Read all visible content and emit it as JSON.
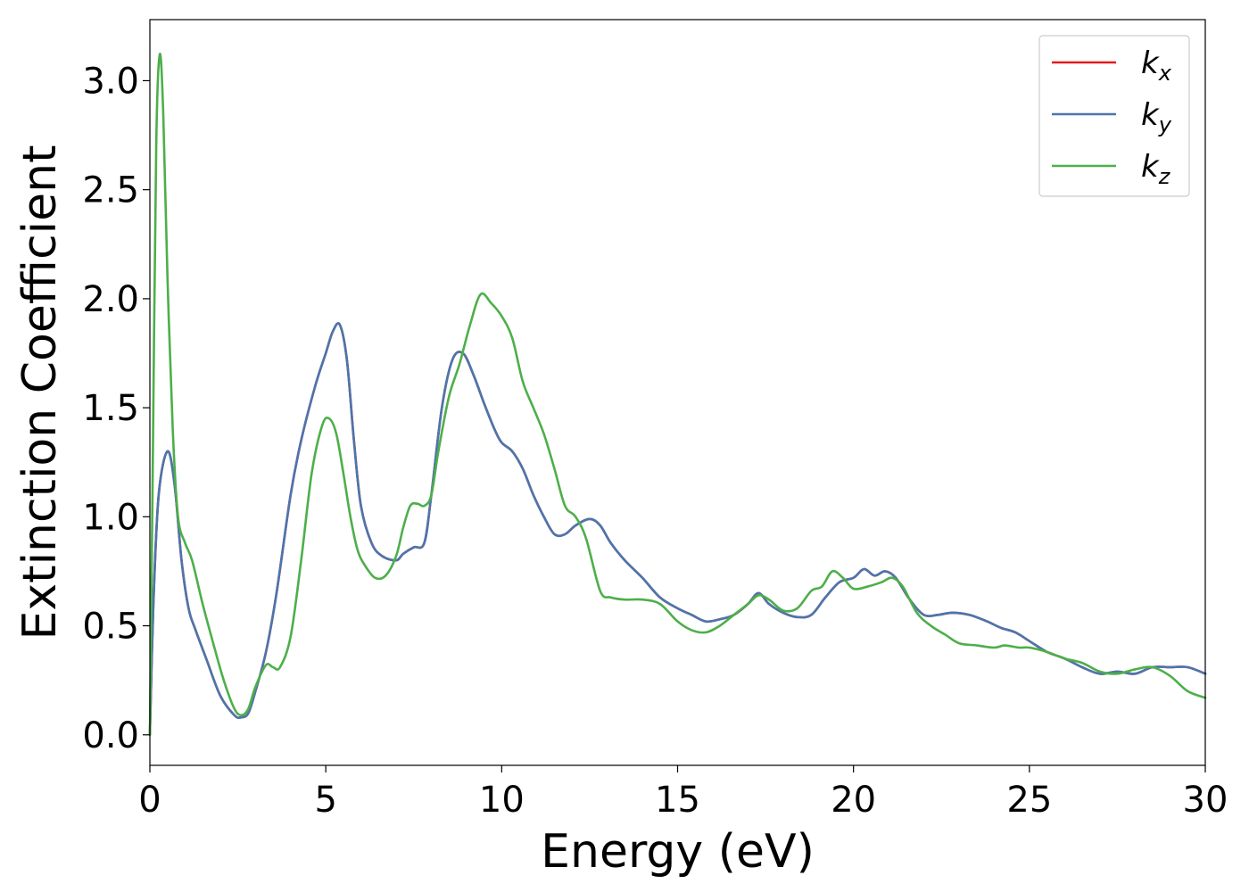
{
  "chart_data": {
    "type": "line",
    "title": "",
    "xlabel": "Energy (eV)",
    "ylabel": "Extinction Coefficient",
    "xlim": [
      0,
      30
    ],
    "ylim": [
      -0.14,
      3.28
    ],
    "xticks": [
      0,
      5,
      10,
      15,
      20,
      25,
      30
    ],
    "xtick_labels": [
      "0",
      "5",
      "10",
      "15",
      "20",
      "25",
      "30"
    ],
    "yticks": [
      0.0,
      0.5,
      1.0,
      1.5,
      2.0,
      2.5,
      3.0
    ],
    "ytick_labels": [
      "0.0",
      "0.5",
      "1.0",
      "1.5",
      "2.0",
      "2.5",
      "3.0"
    ],
    "grid": false,
    "legend_position": "top-right",
    "series": [
      {
        "name": "k",
        "sub": "x",
        "color": "#e41a1c",
        "x": [
          0,
          0.1,
          0.25,
          0.5,
          0.7,
          0.9,
          1.1,
          1.3,
          1.6,
          2.0,
          2.4,
          2.6,
          2.8,
          3.0,
          3.3,
          3.6,
          4.0,
          4.3,
          4.7,
          5.0,
          5.2,
          5.4,
          5.6,
          5.8,
          6.0,
          6.3,
          6.6,
          7.0,
          7.2,
          7.5,
          7.8,
          8.0,
          8.3,
          8.6,
          8.9,
          9.2,
          9.5,
          9.8,
          10.0,
          10.3,
          10.6,
          10.9,
          11.2,
          11.5,
          11.8,
          12.1,
          12.5,
          12.8,
          13.1,
          13.5,
          14.0,
          14.5,
          15.0,
          15.4,
          15.8,
          16.2,
          16.6,
          17.0,
          17.3,
          17.6,
          18.0,
          18.4,
          18.8,
          19.2,
          19.6,
          20.0,
          20.3,
          20.6,
          20.9,
          21.2,
          21.6,
          22.0,
          22.4,
          22.8,
          23.3,
          23.8,
          24.2,
          24.6,
          25.0,
          25.5,
          26.0,
          26.5,
          27.0,
          27.5,
          28.0,
          28.5,
          29.0,
          29.5,
          30.0
        ],
        "values": [
          0.0,
          0.6,
          1.1,
          1.3,
          1.15,
          0.8,
          0.58,
          0.48,
          0.35,
          0.18,
          0.09,
          0.08,
          0.1,
          0.2,
          0.38,
          0.65,
          1.1,
          1.35,
          1.6,
          1.75,
          1.85,
          1.88,
          1.72,
          1.35,
          1.05,
          0.88,
          0.82,
          0.8,
          0.83,
          0.86,
          0.88,
          1.1,
          1.5,
          1.72,
          1.75,
          1.65,
          1.52,
          1.4,
          1.34,
          1.3,
          1.22,
          1.1,
          1.0,
          0.92,
          0.92,
          0.96,
          0.99,
          0.96,
          0.88,
          0.8,
          0.72,
          0.63,
          0.58,
          0.55,
          0.52,
          0.53,
          0.55,
          0.6,
          0.65,
          0.6,
          0.56,
          0.54,
          0.55,
          0.63,
          0.7,
          0.72,
          0.76,
          0.73,
          0.75,
          0.72,
          0.62,
          0.55,
          0.55,
          0.56,
          0.55,
          0.52,
          0.49,
          0.47,
          0.43,
          0.38,
          0.35,
          0.31,
          0.28,
          0.29,
          0.28,
          0.31,
          0.31,
          0.31,
          0.28
        ]
      },
      {
        "name": "k",
        "sub": "y",
        "color": "#4a76ad",
        "x": [
          0,
          0.1,
          0.25,
          0.5,
          0.7,
          0.9,
          1.1,
          1.3,
          1.6,
          2.0,
          2.4,
          2.6,
          2.8,
          3.0,
          3.3,
          3.6,
          4.0,
          4.3,
          4.7,
          5.0,
          5.2,
          5.4,
          5.6,
          5.8,
          6.0,
          6.3,
          6.6,
          7.0,
          7.2,
          7.5,
          7.8,
          8.0,
          8.3,
          8.6,
          8.9,
          9.2,
          9.5,
          9.8,
          10.0,
          10.3,
          10.6,
          10.9,
          11.2,
          11.5,
          11.8,
          12.1,
          12.5,
          12.8,
          13.1,
          13.5,
          14.0,
          14.5,
          15.0,
          15.4,
          15.8,
          16.2,
          16.6,
          17.0,
          17.3,
          17.6,
          18.0,
          18.4,
          18.8,
          19.2,
          19.6,
          20.0,
          20.3,
          20.6,
          20.9,
          21.2,
          21.6,
          22.0,
          22.4,
          22.8,
          23.3,
          23.8,
          24.2,
          24.6,
          25.0,
          25.5,
          26.0,
          26.5,
          27.0,
          27.5,
          28.0,
          28.5,
          29.0,
          29.5,
          30.0
        ],
        "values": [
          0.0,
          0.6,
          1.1,
          1.3,
          1.15,
          0.8,
          0.58,
          0.48,
          0.35,
          0.18,
          0.09,
          0.08,
          0.1,
          0.2,
          0.38,
          0.65,
          1.1,
          1.35,
          1.6,
          1.75,
          1.85,
          1.88,
          1.72,
          1.35,
          1.05,
          0.88,
          0.82,
          0.8,
          0.83,
          0.86,
          0.88,
          1.1,
          1.5,
          1.72,
          1.75,
          1.65,
          1.52,
          1.4,
          1.34,
          1.3,
          1.22,
          1.1,
          1.0,
          0.92,
          0.92,
          0.96,
          0.99,
          0.96,
          0.88,
          0.8,
          0.72,
          0.63,
          0.58,
          0.55,
          0.52,
          0.53,
          0.55,
          0.6,
          0.65,
          0.6,
          0.56,
          0.54,
          0.55,
          0.63,
          0.7,
          0.72,
          0.76,
          0.73,
          0.75,
          0.72,
          0.62,
          0.55,
          0.55,
          0.56,
          0.55,
          0.52,
          0.49,
          0.47,
          0.43,
          0.38,
          0.35,
          0.31,
          0.28,
          0.29,
          0.28,
          0.31,
          0.31,
          0.31,
          0.28
        ]
      },
      {
        "name": "k",
        "sub": "z",
        "color": "#4daf4a",
        "x": [
          0,
          0.08,
          0.18,
          0.28,
          0.38,
          0.5,
          0.65,
          0.8,
          1.0,
          1.2,
          1.5,
          1.8,
          2.1,
          2.4,
          2.6,
          2.8,
          3.0,
          3.3,
          3.5,
          3.7,
          4.0,
          4.3,
          4.6,
          4.9,
          5.1,
          5.3,
          5.5,
          5.7,
          5.9,
          6.1,
          6.4,
          6.7,
          7.0,
          7.2,
          7.4,
          7.6,
          7.8,
          8.0,
          8.2,
          8.5,
          8.8,
          9.1,
          9.4,
          9.7,
          10.0,
          10.3,
          10.6,
          10.9,
          11.2,
          11.5,
          11.8,
          12.1,
          12.4,
          12.8,
          13.1,
          13.5,
          14.0,
          14.5,
          15.0,
          15.4,
          15.8,
          16.2,
          16.6,
          17.0,
          17.3,
          17.6,
          18.0,
          18.4,
          18.8,
          19.1,
          19.4,
          19.7,
          20.0,
          20.4,
          20.8,
          21.1,
          21.4,
          21.8,
          22.2,
          22.6,
          23.0,
          23.5,
          24.0,
          24.3,
          24.7,
          25.0,
          25.5,
          26.0,
          26.5,
          27.0,
          27.5,
          28.0,
          28.5,
          29.0,
          29.5,
          30.0
        ],
        "values": [
          0.0,
          1.2,
          2.7,
          3.12,
          2.85,
          2.1,
          1.4,
          1.0,
          0.88,
          0.8,
          0.6,
          0.42,
          0.25,
          0.12,
          0.09,
          0.12,
          0.22,
          0.32,
          0.31,
          0.31,
          0.45,
          0.8,
          1.2,
          1.42,
          1.45,
          1.38,
          1.2,
          1.0,
          0.85,
          0.78,
          0.72,
          0.73,
          0.82,
          0.95,
          1.05,
          1.06,
          1.05,
          1.1,
          1.3,
          1.55,
          1.7,
          1.88,
          2.02,
          1.98,
          1.92,
          1.82,
          1.62,
          1.5,
          1.38,
          1.22,
          1.05,
          1.0,
          0.9,
          0.66,
          0.63,
          0.62,
          0.62,
          0.6,
          0.52,
          0.48,
          0.47,
          0.5,
          0.55,
          0.6,
          0.64,
          0.62,
          0.57,
          0.58,
          0.66,
          0.68,
          0.75,
          0.72,
          0.67,
          0.68,
          0.7,
          0.72,
          0.68,
          0.56,
          0.5,
          0.46,
          0.42,
          0.41,
          0.4,
          0.41,
          0.4,
          0.4,
          0.38,
          0.35,
          0.33,
          0.29,
          0.28,
          0.3,
          0.31,
          0.27,
          0.2,
          0.17
        ]
      }
    ]
  }
}
